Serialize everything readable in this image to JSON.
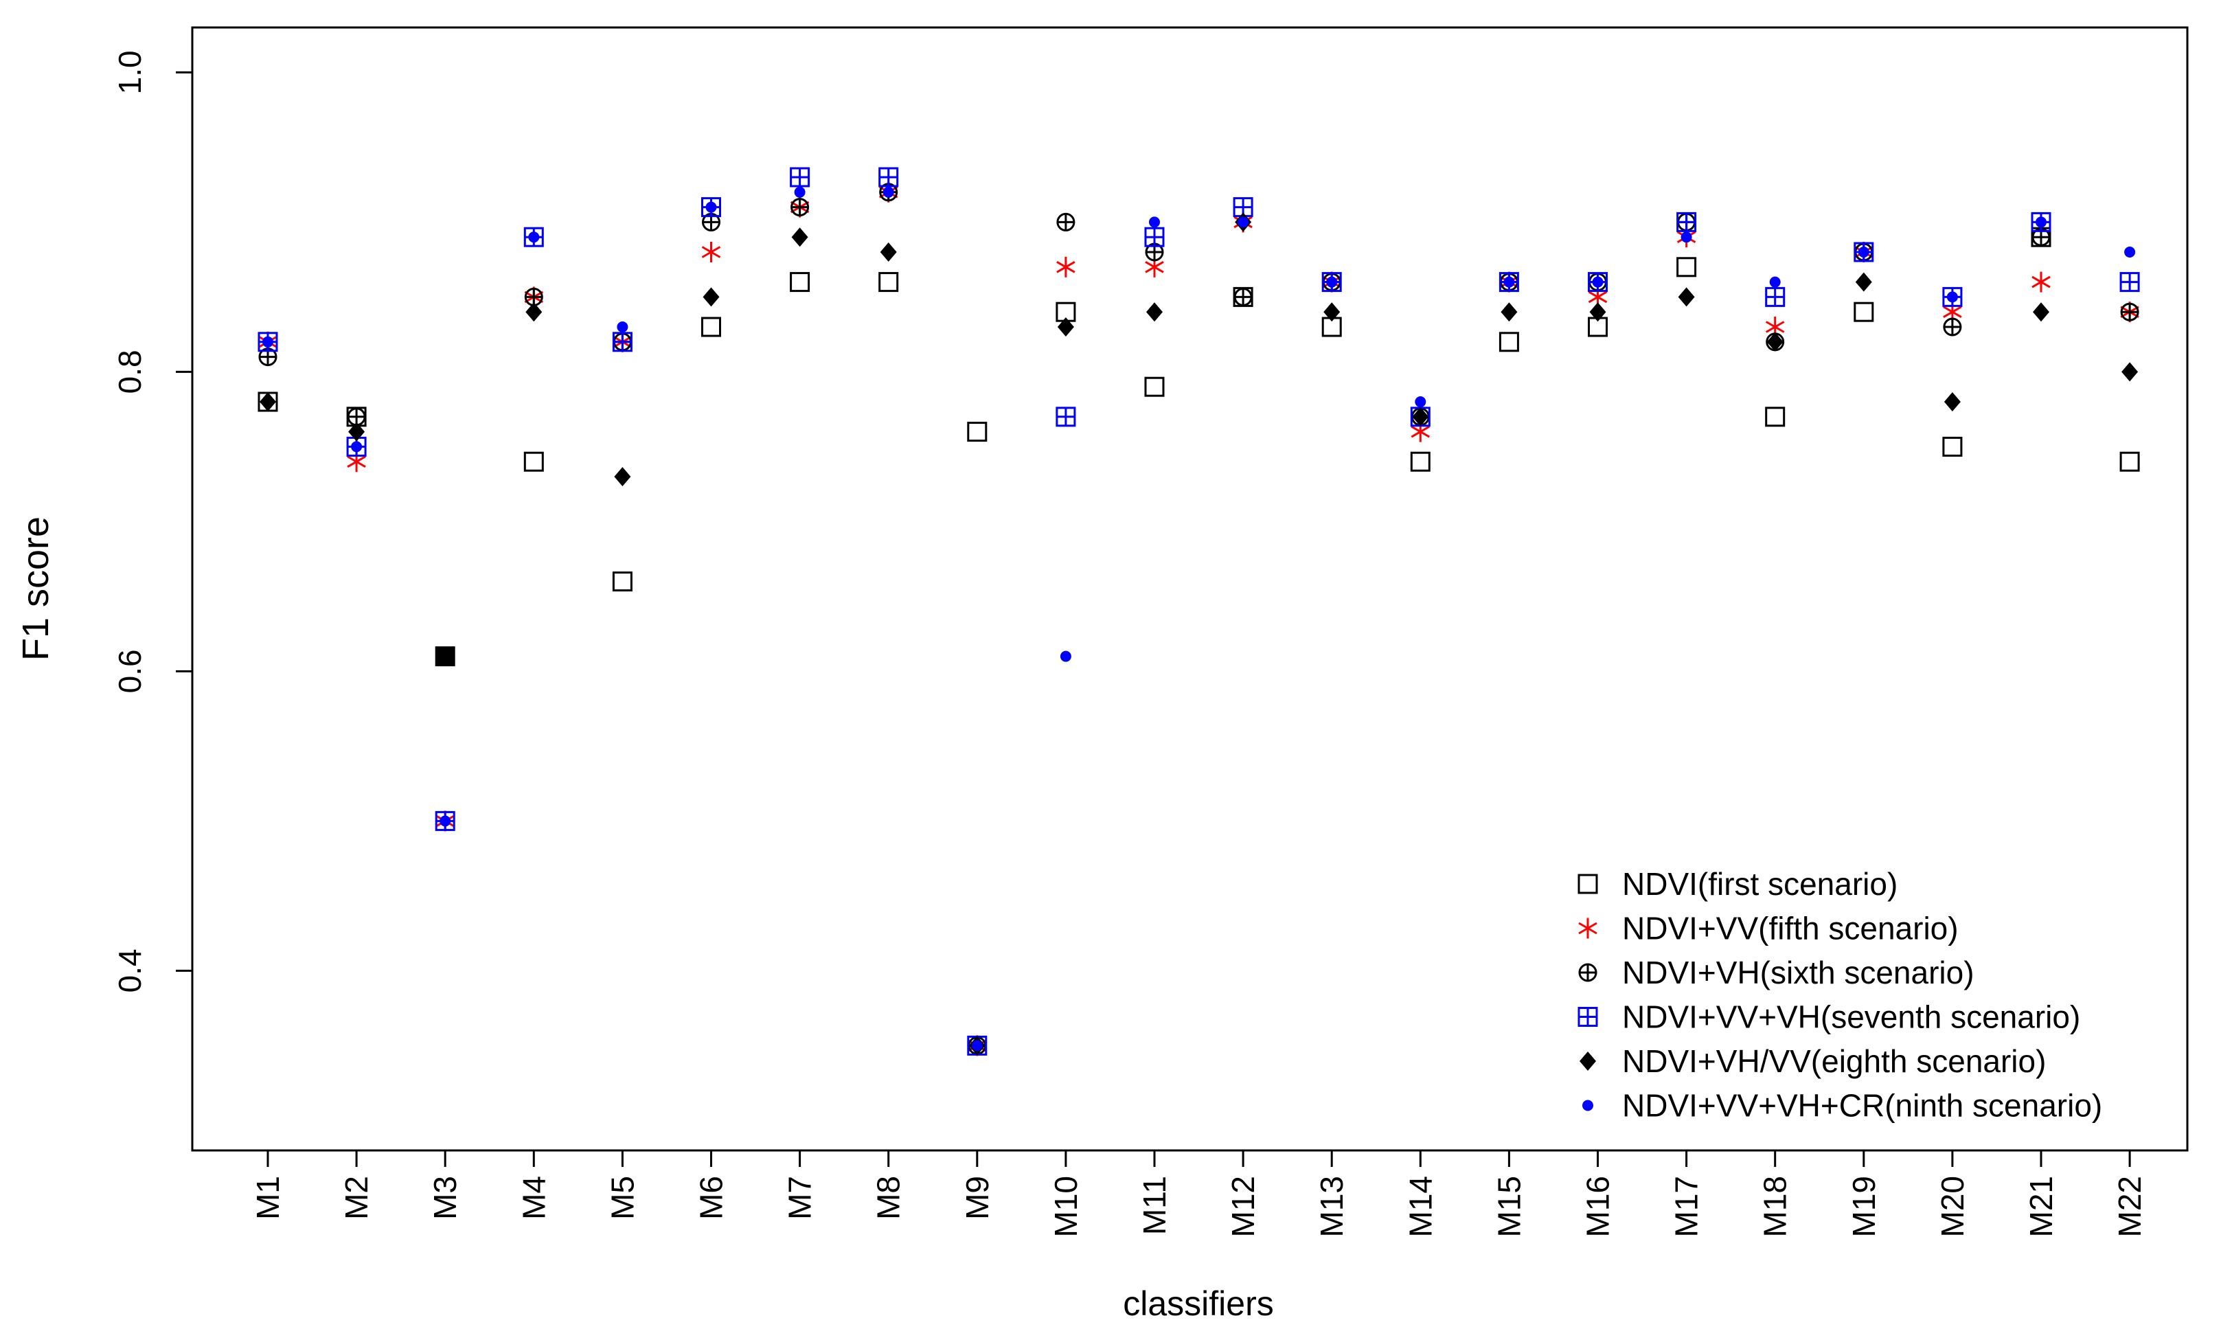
{
  "chart_data": {
    "type": "scatter",
    "xlabel": "classifiers",
    "ylabel": "F1 score",
    "ylim": [
      0.28,
      1.03
    ],
    "yticks": [
      "0.4",
      "0.6",
      "0.8",
      "1.0"
    ],
    "categories": [
      "M1",
      "M2",
      "M3",
      "M4",
      "M5",
      "M6",
      "M7",
      "M8",
      "M9",
      "M10",
      "M11",
      "M12",
      "M13",
      "M14",
      "M15",
      "M16",
      "M17",
      "M18",
      "M19",
      "M20",
      "M21",
      "M22"
    ],
    "legend_position": "bottom-right",
    "series": [
      {
        "name": "NDVI(first scenario)",
        "marker": "open-square",
        "color": "#000000",
        "values": [
          0.78,
          0.77,
          0.61,
          0.74,
          0.66,
          0.83,
          0.86,
          0.86,
          0.76,
          0.84,
          0.79,
          0.85,
          0.83,
          0.74,
          0.82,
          0.83,
          0.87,
          0.77,
          0.84,
          0.75,
          0.89,
          0.74
        ]
      },
      {
        "name": "NDVI+VV(fifth scenario)",
        "marker": "asterisk",
        "color": "#ff0000",
        "values": [
          0.82,
          0.74,
          0.5,
          0.85,
          0.82,
          0.88,
          0.91,
          0.92,
          0.35,
          0.87,
          0.87,
          0.9,
          0.86,
          0.76,
          0.86,
          0.85,
          0.89,
          0.83,
          0.88,
          0.84,
          0.86,
          0.84
        ]
      },
      {
        "name": "NDVI+VH(sixth scenario)",
        "marker": "circle-plus",
        "color": "#000000",
        "values": [
          0.81,
          0.77,
          0.61,
          0.85,
          0.82,
          0.9,
          0.91,
          0.92,
          0.35,
          0.9,
          0.88,
          0.85,
          0.86,
          0.77,
          0.86,
          0.86,
          0.9,
          0.82,
          0.88,
          0.83,
          0.89,
          0.84
        ]
      },
      {
        "name": "NDVI+VV+VH(seventh scenario)",
        "marker": "square-plus",
        "color": "#0000ff",
        "values": [
          0.82,
          0.75,
          0.5,
          0.89,
          0.82,
          0.91,
          0.93,
          0.93,
          0.35,
          0.77,
          0.89,
          0.91,
          0.86,
          0.77,
          0.86,
          0.86,
          0.9,
          0.85,
          0.88,
          0.85,
          0.9,
          0.86
        ]
      },
      {
        "name": "NDVI+VH/VV(eighth scenario)",
        "marker": "filled-diamond",
        "color": "#000000",
        "values": [
          0.78,
          0.76,
          0.61,
          0.84,
          0.73,
          0.85,
          0.89,
          0.88,
          0.35,
          0.83,
          0.84,
          0.9,
          0.84,
          0.77,
          0.84,
          0.84,
          0.85,
          0.82,
          0.86,
          0.78,
          0.84,
          0.8
        ]
      },
      {
        "name": "NDVI+VV+VH+CR(ninth scenario)",
        "marker": "filled-dot",
        "color": "#0000ff",
        "values": [
          0.82,
          0.75,
          0.5,
          0.89,
          0.83,
          0.91,
          0.92,
          0.92,
          0.35,
          0.61,
          0.9,
          0.9,
          0.86,
          0.78,
          0.86,
          0.86,
          0.89,
          0.86,
          0.88,
          0.85,
          0.9,
          0.88
        ]
      }
    ]
  }
}
